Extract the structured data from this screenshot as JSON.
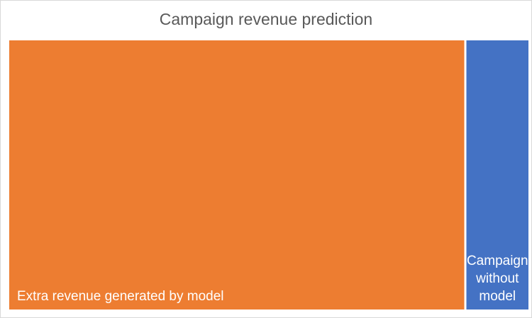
{
  "chart_data": {
    "type": "treemap",
    "title": "Campaign revenue prediction",
    "items": [
      {
        "name": "Extra revenue generated by model",
        "label_lines": [
          "Extra revenue generated by model"
        ],
        "value": 88,
        "color": "#ED7D31",
        "label_align": "left"
      },
      {
        "name": "Campaign without model",
        "label_lines": [
          "Campaign",
          "without",
          "model"
        ],
        "value": 12,
        "color": "#4472C4",
        "label_align": "center"
      }
    ],
    "legend": "none",
    "grid": false
  }
}
